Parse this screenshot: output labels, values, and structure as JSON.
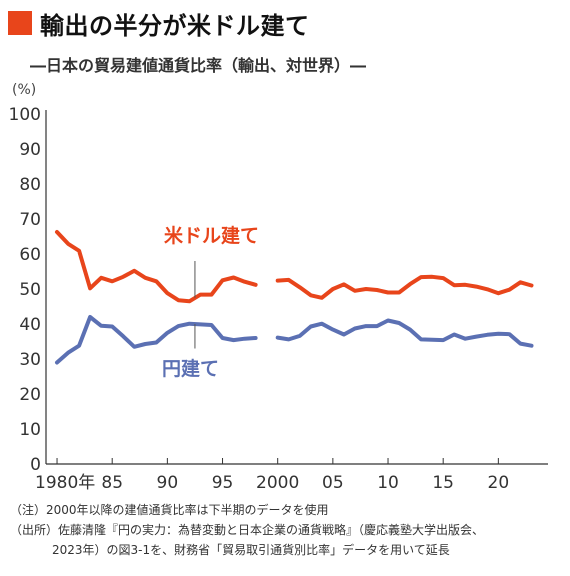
{
  "title": "輸出の半分が米ドル建て",
  "subtitle": "―日本の貿易建値通貨比率（輸出、対世界）―",
  "colors": {
    "accent": "#e8451b",
    "usd": "#e8451b",
    "yen": "#5b70b3"
  },
  "notes": [
    "（注）2000年以降の建値通貨比率は下半期のデータを使用",
    "（出所）佐藤清隆『円の実力：為替変動と日本企業の通貨戦略』（慶応義塾大学出版会、",
    "2023年）の図3-1を、財務省「貿易取引通貨別比率」データを用いて延長"
  ],
  "chart_data": {
    "type": "line",
    "ylabel": "(%)",
    "ylim": [
      0,
      100
    ],
    "yticks": [
      0,
      10,
      20,
      30,
      40,
      50,
      60,
      70,
      80,
      90,
      100
    ],
    "xlim": [
      1979,
      2024.5
    ],
    "xticks": [
      {
        "x": 1980,
        "label": "1980年"
      },
      {
        "x": 1985,
        "label": "85"
      },
      {
        "x": 1990,
        "label": "90"
      },
      {
        "x": 1995,
        "label": "95"
      },
      {
        "x": 2000,
        "label": "2000"
      },
      {
        "x": 2005,
        "label": "05"
      },
      {
        "x": 2010,
        "label": "10"
      },
      {
        "x": 2015,
        "label": "15"
      },
      {
        "x": 2020,
        "label": "20"
      }
    ],
    "grid": false,
    "series": [
      {
        "name": "米ドル建て",
        "color": "#e8451b",
        "segments": [
          {
            "x": [
              1980,
              1981,
              1982,
              1983,
              1984,
              1985,
              1986,
              1987,
              1988,
              1989,
              1990,
              1991,
              1992,
              1993,
              1994,
              1995,
              1996,
              1997,
              1998
            ],
            "y": [
              66.3,
              62.9,
              60.9,
              50.2,
              53.2,
              52.2,
              53.5,
              55.2,
              53.2,
              52.2,
              48.8,
              46.8,
              46.5,
              48.4,
              48.4,
              52.5,
              53.3,
              52.1,
              51.2
            ]
          },
          {
            "x": [
              2000,
              2001,
              2002,
              2003,
              2004,
              2005,
              2006,
              2007,
              2008,
              2009,
              2010,
              2011,
              2012,
              2013,
              2014,
              2015,
              2016,
              2017,
              2018,
              2019,
              2020,
              2021,
              2022,
              2023
            ],
            "y": [
              52.4,
              52.6,
              50.5,
              48.2,
              47.5,
              50.0,
              51.3,
              49.5,
              50.0,
              49.7,
              49.0,
              49.0,
              51.4,
              53.4,
              53.5,
              53.1,
              51.1,
              51.2,
              50.7,
              49.9,
              48.8,
              49.8,
              51.9,
              51.0
            ]
          }
        ],
        "label_position": "上（1987年付近）"
      },
      {
        "name": "円建て",
        "color": "#5b70b3",
        "segments": [
          {
            "x": [
              1980,
              1981,
              1982,
              1983,
              1984,
              1985,
              1986,
              1987,
              1988,
              1989,
              1990,
              1991,
              1992,
              1993,
              1994,
              1995,
              1996,
              1997,
              1998
            ],
            "y": [
              29.0,
              31.8,
              33.8,
              42.0,
              39.5,
              39.3,
              36.5,
              33.5,
              34.3,
              34.7,
              37.5,
              39.4,
              40.1,
              39.9,
              39.7,
              36.0,
              35.4,
              35.8,
              36.0
            ]
          },
          {
            "x": [
              2000,
              2001,
              2002,
              2003,
              2004,
              2005,
              2006,
              2007,
              2008,
              2009,
              2010,
              2011,
              2012,
              2013,
              2014,
              2015,
              2016,
              2017,
              2018,
              2019,
              2020,
              2021,
              2022,
              2023
            ],
            "y": [
              36.1,
              35.6,
              36.6,
              39.3,
              40.1,
              38.4,
              37.0,
              38.7,
              39.4,
              39.4,
              41.0,
              40.3,
              38.4,
              35.6,
              35.5,
              35.4,
              37.0,
              35.8,
              36.4,
              36.9,
              37.2,
              37.1,
              34.4,
              33.8
            ]
          }
        ],
        "label_position": "下（1990年付近）"
      }
    ]
  }
}
